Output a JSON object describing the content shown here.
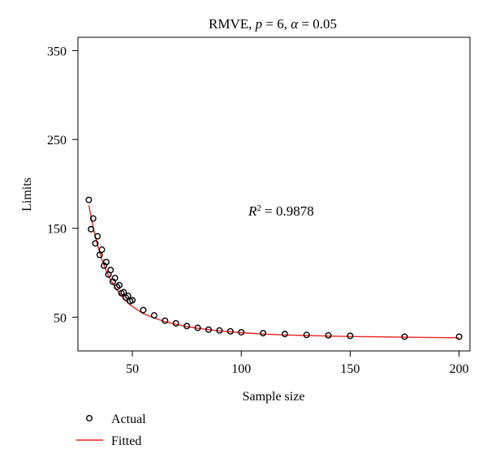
{
  "chart_data": {
    "type": "scatter",
    "title": {
      "prefix": "RMVE, ",
      "p_symbol": "p",
      "p_value": " = 6, ",
      "alpha_symbol": "α",
      "alpha_value": " = 0.05"
    },
    "xlabel": "Sample size",
    "ylabel": "Limits",
    "xlim": [
      25,
      205
    ],
    "ylim": [
      12,
      365
    ],
    "x_ticks": [
      50,
      100,
      150,
      200
    ],
    "y_ticks": [
      50,
      150,
      250,
      350
    ],
    "grid": false,
    "legend_position": "bottom-left",
    "annotation": {
      "symbol": "R",
      "superscript": "2",
      "text": " = 0.9878"
    },
    "series": [
      {
        "name": "Actual",
        "kind": "points",
        "color": "#000000",
        "x": [
          30,
          31,
          32,
          33,
          34,
          35,
          36,
          37,
          38,
          39,
          40,
          41,
          42,
          43,
          44,
          45,
          46,
          47,
          48,
          49,
          50,
          55,
          60,
          65,
          70,
          75,
          80,
          85,
          90,
          95,
          100,
          110,
          120,
          130,
          140,
          150,
          175,
          200
        ],
        "y": [
          182,
          149,
          161,
          133,
          141,
          120,
          126,
          108,
          112,
          98,
          103,
          90,
          94,
          84,
          86,
          77,
          78,
          72,
          74,
          68,
          69,
          58,
          52,
          46,
          43,
          40,
          38,
          36,
          35,
          34,
          33,
          32,
          31,
          30,
          29.5,
          29,
          28,
          28
        ]
      },
      {
        "name": "Fitted",
        "kind": "line",
        "color": "#e8211d",
        "x": [
          30,
          32,
          34,
          36,
          38,
          40,
          42,
          44,
          46,
          48,
          50,
          55,
          60,
          65,
          70,
          75,
          80,
          90,
          100,
          110,
          120,
          130,
          140,
          150,
          175,
          200
        ],
        "y": [
          176,
          151,
          131,
          115,
          102,
          92,
          84,
          77,
          71,
          66,
          62,
          54,
          49,
          45,
          42,
          39.5,
          37.5,
          34.5,
          32.5,
          31,
          30,
          29.3,
          28.7,
          28.2,
          27.4,
          26.8
        ]
      }
    ]
  }
}
